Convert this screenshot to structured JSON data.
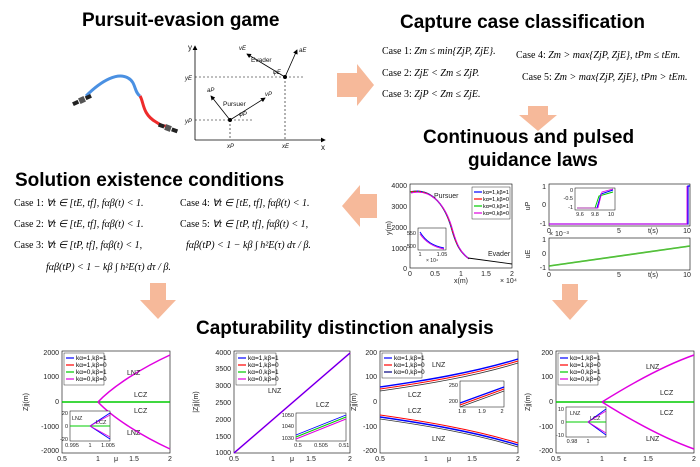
{
  "sections": {
    "pursuit": "Pursuit-evasion game",
    "capture": "Capture case classification",
    "guidance_line1": "Continuous and pulsed",
    "guidance_line2": "guidance laws",
    "existence": "Solution existence conditions",
    "capturability": "Capturability distinction analysis"
  },
  "geometry_labels": {
    "evader": "Evader",
    "pursuer": "Pursuer",
    "a_E": "aE",
    "v_E": "vE",
    "phi_E": "φE",
    "a_P": "aP",
    "v_P": "vP",
    "phi_P": "φP",
    "y_axis": "y",
    "x_axis": "x",
    "yE": "yE",
    "yP": "yP",
    "xP": "xP",
    "xE": "xE"
  },
  "capture_cases": [
    {
      "case": "Case 1:",
      "expr": "Zm ≤ min{ZjP, ZjE}."
    },
    {
      "case": "Case 2:",
      "expr": "ZjE < Zm ≤ ZjP."
    },
    {
      "case": "Case 3:",
      "expr": "ZjP < Zm ≤ ZjE."
    },
    {
      "case": "Case 4:",
      "expr": "Zm > max{ZjP, ZjE}, tPm ≤ tEm."
    },
    {
      "case": "Case 5:",
      "expr": "Zm > max{ZjP, ZjE}, tPm > tEm."
    }
  ],
  "existence_cases": [
    {
      "case": "Case 1:",
      "expr": "∀t ∈ [tE, tf], fαβ(t) < 1."
    },
    {
      "case": "Case 2:",
      "expr": "∀t ∈ [tE, tf], fαβ(t) < 1."
    },
    {
      "case": "Case 3:",
      "expr": "∀t ∈ [tP, tf], fαβ(t) < 1,"
    },
    {
      "case": "Case 4:",
      "expr": "∀t ∈ [tE, tf], fαβ(t) < 1."
    },
    {
      "case": "Case 5:",
      "expr": "∀t ∈ [tP, tf], fαβ(t) < 1,"
    }
  ],
  "existence_extra": {
    "case3_cond": "fαβ(tP) < 1 − kβ ∫ h²E(τ) dτ / β.",
    "case5_cond": "fαβ(tP) < 1 − kβ ∫ h²E(τ) dτ / β."
  },
  "trajectory_plot": {
    "pursuer_label": "Pursuer",
    "evader_label": "Evader",
    "ylabel": "y(m)",
    "xlabel": "x(m)",
    "x_exp": "× 10⁴",
    "yticks": [
      "4000",
      "3000",
      "2000",
      "1000",
      "0"
    ],
    "xticks": [
      "0",
      "0.5",
      "1",
      "1.5",
      "2"
    ],
    "inset_y": [
      "550",
      "500"
    ],
    "inset_x": [
      "1",
      "1.05"
    ],
    "inset_exp": "× 10⁴",
    "legend": [
      "kα=1,kβ=1",
      "kα=1,kβ=0",
      "kα=0,kβ=1",
      "kα=0,kβ=0"
    ]
  },
  "control_plot": {
    "top_ylabel": "uP",
    "top_yticks": [
      "1",
      "0",
      "-1"
    ],
    "top_xlabel": "t(s)",
    "top_xticks": [
      "0",
      "5",
      "10"
    ],
    "inset_yticks": [
      "0",
      "-0.5",
      "-1"
    ],
    "inset_xticks": [
      "9.6",
      "9.8",
      "10"
    ],
    "bottom_ylabel": "uE",
    "bottom_exp": "× 10⁻³",
    "bottom_yticks": [
      "1",
      "0",
      "-1"
    ],
    "bottom_xlabel": "t(s)",
    "bottom_xticks": [
      "0",
      "5",
      "10"
    ]
  },
  "legend_labels": [
    "kα=1,kβ=1",
    "kα=1,kβ=0",
    "kα=0,kβ=1",
    "kα=0,kβ=0"
  ],
  "panels": [
    {
      "ylabel": "Zjj(m)",
      "xlabel": "μ",
      "yticks": [
        "2000",
        "1000",
        "0",
        "-1000",
        "-2000"
      ],
      "xticks": [
        "0.5",
        "1",
        "1.5",
        "2"
      ],
      "regions": [
        "LNZ",
        "LCZ",
        "LCZ",
        "LNZ"
      ],
      "inset_regions": [
        "LNZ",
        "LCZ"
      ],
      "inset_y": [
        "20",
        "0",
        "-20"
      ],
      "inset_x": [
        "0.995",
        "1",
        "1.005"
      ]
    },
    {
      "ylabel": "|Zjj|(m)",
      "xlabel": "μ",
      "yticks": [
        "4000",
        "3500",
        "3000",
        "2500",
        "2000",
        "1500",
        "1000"
      ],
      "xticks": [
        "0.5",
        "1",
        "1.5",
        "2"
      ],
      "regions": [
        "LNZ",
        "LCZ"
      ],
      "inset_y": [
        "1050",
        "1040",
        "1030"
      ],
      "inset_x": [
        "0.5",
        "0.505",
        "0.51"
      ]
    },
    {
      "ylabel": "Zjj(m)",
      "xlabel": "μ",
      "yticks": [
        "200",
        "100",
        "0",
        "-100",
        "-200"
      ],
      "xticks": [
        "0.5",
        "1",
        "1.5",
        "2"
      ],
      "regions": [
        "LNZ",
        "LCZ",
        "LCZ",
        "LNZ"
      ],
      "inset_y": [
        "250",
        "200"
      ],
      "inset_x": [
        "1.8",
        "1.9",
        "2"
      ]
    },
    {
      "ylabel": "Zjj(m)",
      "xlabel": "ε",
      "yticks": [
        "200",
        "100",
        "0",
        "-100",
        "-200"
      ],
      "xticks": [
        "0.5",
        "1",
        "1.5",
        "2"
      ],
      "regions": [
        "LNZ",
        "LCZ",
        "LCZ",
        "LNZ"
      ],
      "inset_regions": [
        "LNZ",
        "LCZ"
      ],
      "inset_y": [
        "10",
        "0",
        "-10"
      ],
      "inset_x": [
        "0.98",
        "1"
      ]
    }
  ],
  "colors": {
    "arrow": "#f6b99a",
    "blue": "#0000ff",
    "red": "#ff0000",
    "green": "#00cc00",
    "magenta": "#e000e0",
    "navy": "#000080"
  }
}
